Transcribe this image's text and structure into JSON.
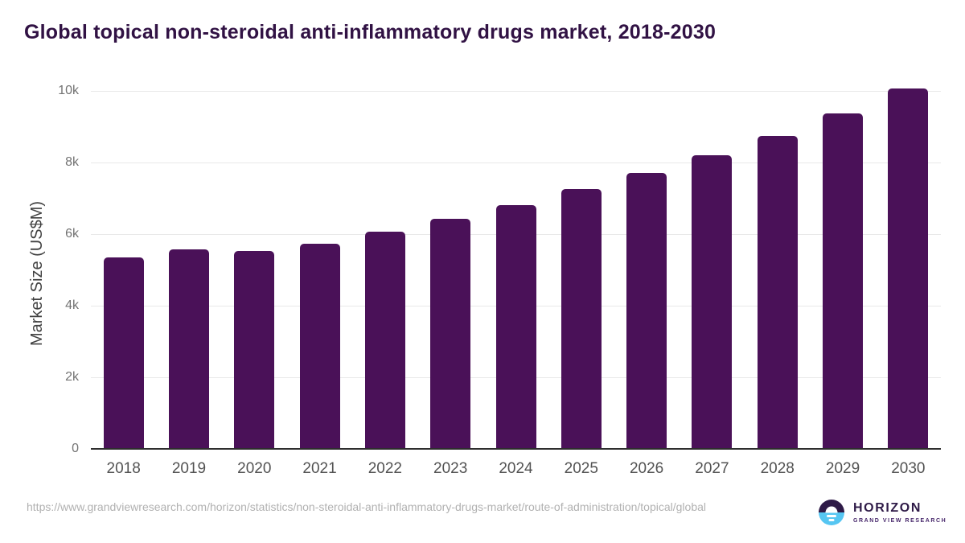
{
  "title": "Global topical non-steroidal anti-inflammatory drugs market, 2018-2030",
  "chart_data": {
    "type": "bar",
    "title": "Global topical non-steroidal anti-inflammatory drugs market, 2018-2030",
    "categories": [
      "2018",
      "2019",
      "2020",
      "2021",
      "2022",
      "2023",
      "2024",
      "2025",
      "2026",
      "2027",
      "2028",
      "2029",
      "2030"
    ],
    "values": [
      5340,
      5580,
      5520,
      5730,
      6060,
      6420,
      6800,
      7250,
      7700,
      8210,
      8740,
      9360,
      10060
    ],
    "xlabel": "",
    "ylabel": "Market Size (US$M)",
    "ylim": [
      0,
      10000
    ],
    "yticks": [
      0,
      2000,
      4000,
      6000,
      8000,
      10000
    ],
    "ytick_labels": [
      "0",
      "2k",
      "4k",
      "6k",
      "8k",
      "10k"
    ],
    "grid": true,
    "legend": "none",
    "bar_color": "#4a1158"
  },
  "footer": {
    "source_url": "https://www.grandviewresearch.com/horizon/statistics/non-steroidal-anti-inflammatory-drugs-market/route-of-administration/topical/global",
    "logo": {
      "brand": "HORIZON",
      "subtitle": "GRAND VIEW RESEARCH",
      "circle_top_color": "#2e1a47",
      "circle_bottom_color": "#56c6f2"
    }
  },
  "colors": {
    "title_text": "#311244",
    "bar": "#4a1158",
    "gridline": "#e9e9e9",
    "axis_line": "#2e2e2e",
    "ytick_text": "#737373",
    "xtick_text": "#525252",
    "yaxis_title_text": "#414141",
    "source_text": "#b1b1b1",
    "background": "#ffffff"
  }
}
